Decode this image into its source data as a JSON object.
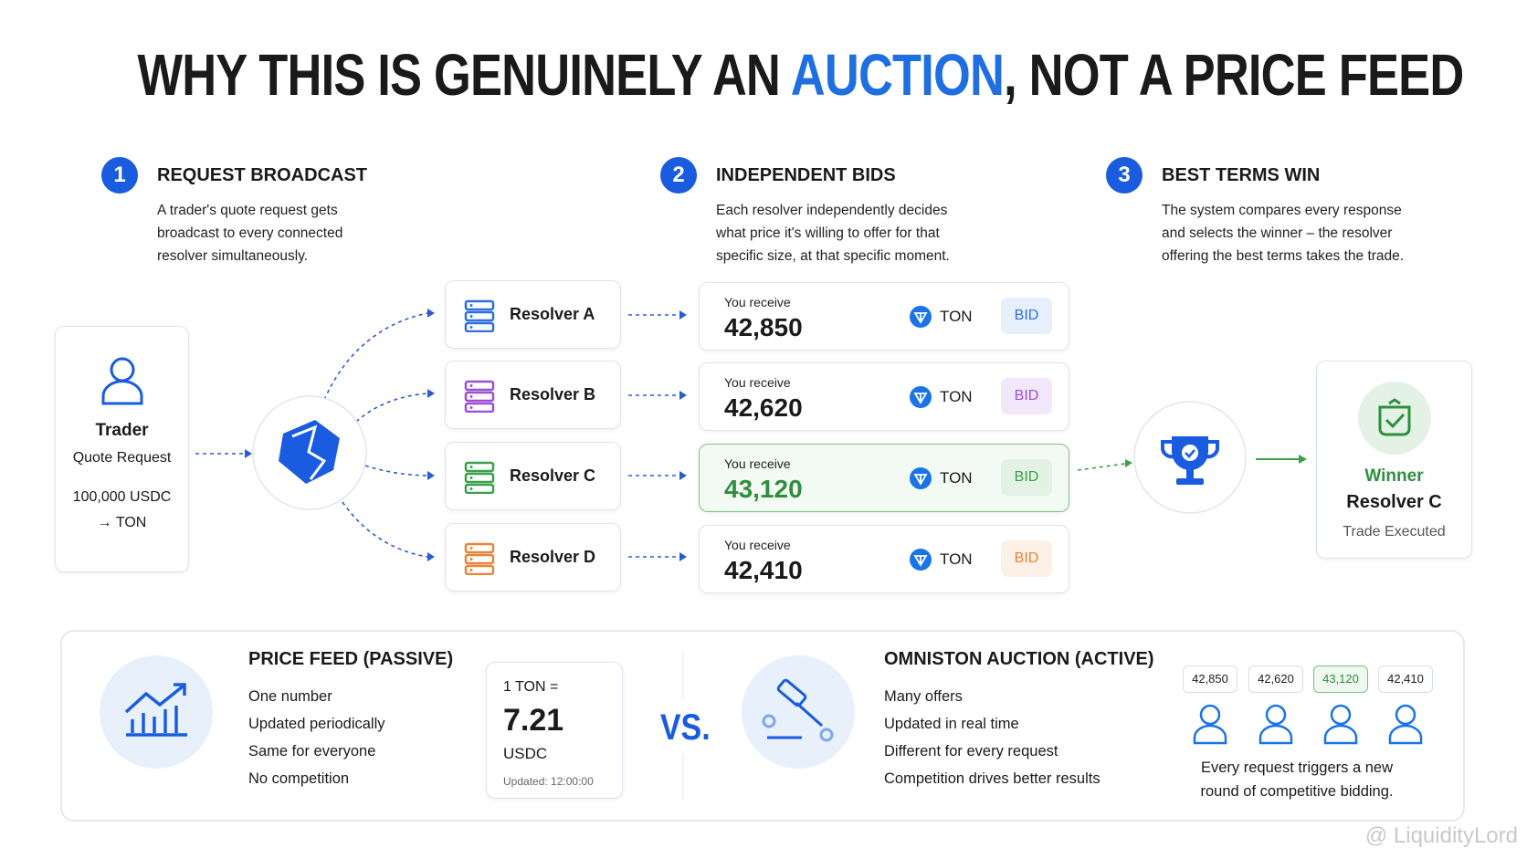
{
  "title": {
    "before": "WHY THIS IS GENUINELY AN ",
    "highlight": "AUCTION",
    "after": ", NOT A PRICE FEED"
  },
  "steps": [
    {
      "number": "1",
      "title": "REQUEST BROADCAST",
      "lines": [
        "A trader's quote request gets",
        "broadcast to every connected",
        "resolver simultaneously."
      ]
    },
    {
      "number": "2",
      "title": "INDEPENDENT BIDS",
      "lines": [
        "Each resolver independently decides",
        "what price it's willing to offer for that",
        "specific size, at that specific moment."
      ]
    },
    {
      "number": "3",
      "title": "BEST TERMS WIN",
      "lines": [
        "The system compares every response",
        "and selects the winner – the resolver",
        "offering the best terms takes the trade."
      ]
    }
  ],
  "trader": {
    "label": "Trader",
    "sub": "Quote Request",
    "amount": "100,000 USDC",
    "pair": "→ TON"
  },
  "resolvers": [
    "Resolver A",
    "Resolver B",
    "Resolver C",
    "Resolver D"
  ],
  "bids": [
    {
      "label": "You receive",
      "amount": "42,850",
      "token": "TON",
      "tag": "BID"
    },
    {
      "label": "You receive",
      "amount": "42,620",
      "token": "TON",
      "tag": "BID"
    },
    {
      "label": "You receive",
      "amount": "43,120",
      "token": "TON",
      "tag": "BID"
    },
    {
      "label": "You receive",
      "amount": "42,410",
      "token": "TON",
      "tag": "BID"
    }
  ],
  "winner": {
    "label": "Winner",
    "name": "Resolver C",
    "status": "Trade Executed"
  },
  "price_feed": {
    "title": "PRICE FEED (PASSIVE)",
    "items": [
      "One number",
      "Updated periodically",
      "Same for everyone",
      "No competition"
    ],
    "card": {
      "line": "1 TON =",
      "price": "7.21",
      "unit": "USDC",
      "updated": "Updated: 12:00:00"
    }
  },
  "vs": "VS.",
  "auction": {
    "title": "OMNISTON AUCTION (ACTIVE)",
    "items": [
      "Many offers",
      "Updated in real time",
      "Different for every request",
      "Competition drives better results"
    ],
    "bids": [
      "42,850",
      "42,620",
      "43,120",
      "42,410"
    ],
    "note": [
      "Every request triggers a new",
      "round of competitive bidding."
    ]
  },
  "watermark": "@ LiquidityLord"
}
